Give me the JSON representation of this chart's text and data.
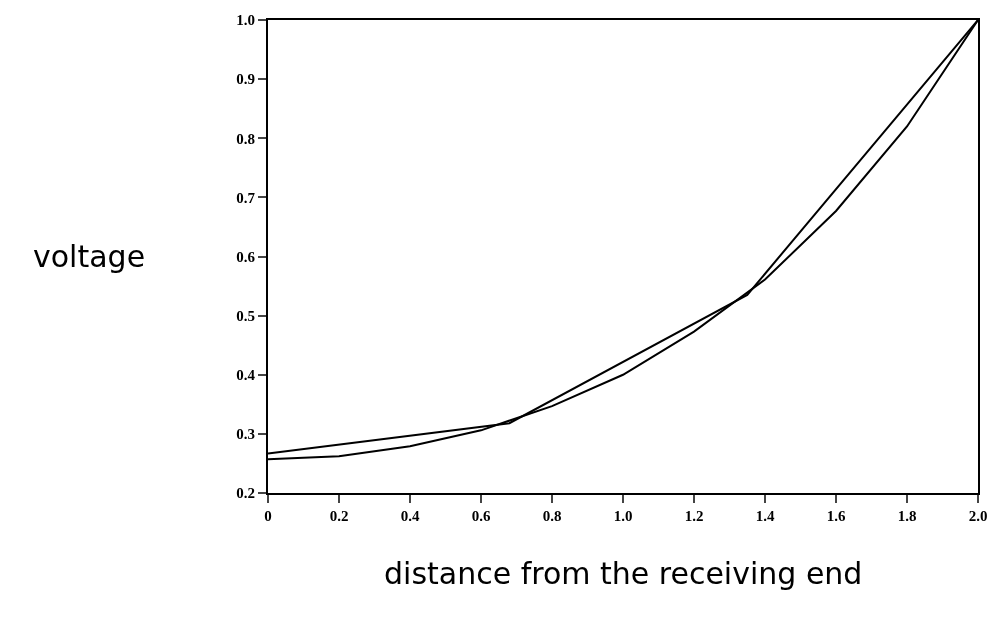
{
  "chart_data": {
    "type": "line",
    "xlabel": "distance from the receiving end",
    "ylabel": "voltage",
    "series": [
      {
        "color": "#000000",
        "x": [
          0,
          0.2,
          0.4,
          0.6,
          0.8,
          1.0,
          1.2,
          1.4,
          1.6,
          1.8,
          2.0
        ],
        "values": [
          0.257,
          0.262,
          0.279,
          0.306,
          0.347,
          0.4,
          0.473,
          0.561,
          0.677,
          0.82,
          1.0
        ]
      },
      {
        "color": "#000000",
        "x": [
          0,
          0.68,
          1.35,
          2.0
        ],
        "values": [
          0.267,
          0.318,
          0.535,
          1.0
        ]
      }
    ],
    "xlim": [
      0,
      2.0
    ],
    "ylim": [
      0.2,
      1.0
    ],
    "xticks": [
      {
        "value": 0,
        "label": "0"
      },
      0.2,
      0.4,
      0.6,
      0.8,
      {
        "value": 1,
        "label": "1.0"
      },
      1.2,
      1.4,
      1.6,
      1.8,
      {
        "value": 2,
        "label": "2.0"
      }
    ],
    "yticks": [
      0.2,
      0.3,
      0.4,
      0.5,
      0.6,
      0.7,
      0.8,
      0.9,
      {
        "value": 1,
        "label": "1.0"
      }
    ],
    "marker": "none",
    "line_style": "solid"
  }
}
